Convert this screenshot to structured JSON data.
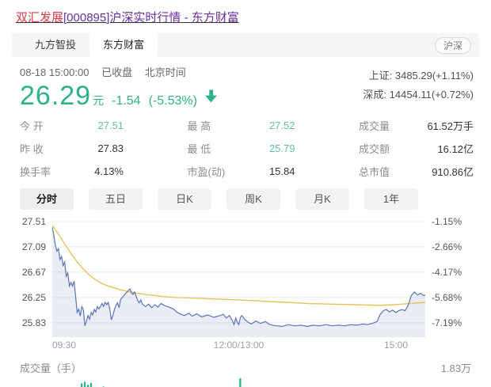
{
  "page_title": {
    "stock_name": "双汇发展",
    "rest": "[000895]沪深实时行情 - 东方财富"
  },
  "top_tabs": {
    "items": [
      {
        "label": "九方智投",
        "active": false
      },
      {
        "label": "东方财富",
        "active": true
      }
    ],
    "market_pill": "沪深"
  },
  "quote": {
    "datetime": "08-18 15:00:00",
    "status": "已收盘",
    "timezone": "北京时间",
    "price": "26.29",
    "unit": "元",
    "change": "-1.54",
    "change_pct": "(-5.53%)",
    "direction": "down",
    "indices": [
      {
        "label": "上证:",
        "value": "3485.29(+1.11%)"
      },
      {
        "label": "深成:",
        "value": "14454.11(+0.72%)"
      }
    ]
  },
  "stats": {
    "items": [
      {
        "label": "今 开",
        "value": "27.51",
        "vclass": "val green"
      },
      {
        "label": "最 高",
        "value": "27.52",
        "vclass": "val green"
      },
      {
        "label": "成交量",
        "value": "61.52万手",
        "vclass": "val dark"
      },
      {
        "label": "昨 收",
        "value": "27.83",
        "vclass": "val dark"
      },
      {
        "label": "最 低",
        "value": "25.79",
        "vclass": "val green"
      },
      {
        "label": "成交额",
        "value": "16.12亿",
        "vclass": "val dark"
      },
      {
        "label": "换手率",
        "value": "4.13%",
        "vclass": "val dark"
      },
      {
        "label": "市盈(动)",
        "value": "15.84",
        "vclass": "val dark"
      },
      {
        "label": "总市值",
        "value": "910.86亿",
        "vclass": "val dark"
      }
    ]
  },
  "chart_tabs": [
    "分时",
    "五日",
    "日K",
    "周K",
    "月K",
    "1年"
  ],
  "colors": {
    "quote_green": "#2fb28c",
    "stat_green": "#63c1a5",
    "price_line": "#5a74b8",
    "price_fill": "rgba(110,130,190,0.14)",
    "avg_line": "#e6c35c",
    "vol_green": "#2bb38a",
    "vol_red": "#d65b5b",
    "grid": "#ececec",
    "title_red": "#dd3b4b",
    "title_purple": "#6b2d9e"
  },
  "chart_data": {
    "type": "line",
    "title": "分时 (intraday)",
    "x_axis": {
      "labels": [
        "09:30",
        "12:00/13:00",
        "15:00"
      ],
      "range_minutes": [
        0,
        240
      ]
    },
    "y_axis_left": {
      "labels": [
        "27.51",
        "27.09",
        "26.67",
        "26.25",
        "25.83"
      ],
      "levels": [
        27.51,
        27.09,
        26.67,
        26.25,
        25.83
      ]
    },
    "y_axis_right": {
      "labels": [
        "-1.15%",
        "-2.66%",
        "-4.17%",
        "-5.68%",
        "-7.19%"
      ]
    },
    "prev_close": 27.83,
    "close": 26.29,
    "grid": true,
    "legend": "none",
    "series": [
      {
        "name": "price",
        "points": [
          [
            0,
            27.42
          ],
          [
            1,
            27.28
          ],
          [
            2,
            27.12
          ],
          [
            3,
            27.02
          ],
          [
            4,
            27.06
          ],
          [
            5,
            26.88
          ],
          [
            6,
            26.93
          ],
          [
            7,
            26.78
          ],
          [
            8,
            26.84
          ],
          [
            9,
            26.6
          ],
          [
            10,
            26.66
          ],
          [
            11,
            26.44
          ],
          [
            12,
            26.5
          ],
          [
            13,
            26.44
          ],
          [
            14,
            26.52
          ],
          [
            15,
            26.28
          ],
          [
            16,
            26.0
          ],
          [
            17,
            26.06
          ],
          [
            18,
            25.94
          ],
          [
            19,
            26.1
          ],
          [
            20,
            26.04
          ],
          [
            21,
            25.78
          ],
          [
            22,
            25.86
          ],
          [
            23,
            25.95
          ],
          [
            24,
            25.89
          ],
          [
            25,
            26.0
          ],
          [
            26,
            25.96
          ],
          [
            27,
            26.05
          ],
          [
            28,
            26.01
          ],
          [
            29,
            26.1
          ],
          [
            30,
            26.06
          ],
          [
            31,
            26.1
          ],
          [
            32,
            26.15
          ],
          [
            33,
            26.1
          ],
          [
            34,
            26.17
          ],
          [
            35,
            26.13
          ],
          [
            36,
            26.17
          ],
          [
            37,
            26.06
          ],
          [
            38,
            25.88
          ],
          [
            39,
            25.95
          ],
          [
            40,
            26.05
          ],
          [
            41,
            26.12
          ],
          [
            42,
            26.16
          ],
          [
            43,
            26.08
          ],
          [
            44,
            26.22
          ],
          [
            46,
            26.28
          ],
          [
            48,
            26.34
          ],
          [
            50,
            26.39
          ],
          [
            51,
            26.33
          ],
          [
            52,
            26.3
          ],
          [
            53,
            26.34
          ],
          [
            54,
            26.27
          ],
          [
            55,
            26.2
          ],
          [
            56,
            26.16
          ],
          [
            57,
            26.21
          ],
          [
            58,
            26.14
          ],
          [
            60,
            26.1
          ],
          [
            62,
            26.14
          ],
          [
            64,
            26.08
          ],
          [
            66,
            26.13
          ],
          [
            68,
            26.09
          ],
          [
            70,
            26.15
          ],
          [
            72,
            26.12
          ],
          [
            75,
            26.09
          ],
          [
            78,
            26.06
          ],
          [
            80,
            26.01
          ],
          [
            82,
            25.98
          ],
          [
            85,
            25.95
          ],
          [
            88,
            25.99
          ],
          [
            90,
            25.94
          ],
          [
            93,
            25.98
          ],
          [
            96,
            25.93
          ],
          [
            100,
            25.96
          ],
          [
            104,
            25.92
          ],
          [
            108,
            25.95
          ],
          [
            110,
            25.97
          ],
          [
            112,
            25.91
          ],
          [
            114,
            25.95
          ],
          [
            116,
            25.86
          ],
          [
            117,
            25.8
          ],
          [
            118,
            25.91
          ],
          [
            119,
            25.84
          ],
          [
            120,
            25.8
          ],
          [
            121,
            25.92
          ],
          [
            122,
            25.95
          ],
          [
            124,
            25.88
          ],
          [
            126,
            25.84
          ],
          [
            128,
            25.81
          ],
          [
            131,
            25.86
          ],
          [
            134,
            25.82
          ],
          [
            137,
            25.85
          ],
          [
            140,
            25.8
          ],
          [
            144,
            25.78
          ],
          [
            148,
            25.77
          ],
          [
            152,
            25.8
          ],
          [
            156,
            25.78
          ],
          [
            160,
            25.79
          ],
          [
            164,
            25.77
          ],
          [
            168,
            25.79
          ],
          [
            172,
            25.78
          ],
          [
            176,
            25.8
          ],
          [
            180,
            25.78
          ],
          [
            184,
            25.79
          ],
          [
            188,
            25.78
          ],
          [
            192,
            25.8
          ],
          [
            196,
            25.79
          ],
          [
            200,
            25.81
          ],
          [
            203,
            25.8
          ],
          [
            206,
            25.82
          ],
          [
            209,
            25.85
          ],
          [
            211,
            25.97
          ],
          [
            213,
            26.03
          ],
          [
            215,
            26.05
          ],
          [
            217,
            26.01
          ],
          [
            219,
            26.04
          ],
          [
            221,
            26.0
          ],
          [
            223,
            26.03
          ],
          [
            225,
            26.05
          ],
          [
            227,
            26.03
          ],
          [
            229,
            26.12
          ],
          [
            231,
            26.28
          ],
          [
            233,
            26.34
          ],
          [
            235,
            26.29
          ],
          [
            237,
            26.32
          ],
          [
            239,
            26.28
          ],
          [
            240,
            26.29
          ]
        ]
      },
      {
        "name": "avg",
        "points": [
          [
            0,
            27.45
          ],
          [
            4,
            27.3
          ],
          [
            8,
            27.14
          ],
          [
            12,
            26.98
          ],
          [
            16,
            26.84
          ],
          [
            20,
            26.72
          ],
          [
            24,
            26.62
          ],
          [
            28,
            26.54
          ],
          [
            32,
            26.48
          ],
          [
            36,
            26.44
          ],
          [
            40,
            26.41
          ],
          [
            45,
            26.37
          ],
          [
            50,
            26.34
          ],
          [
            55,
            26.32
          ],
          [
            60,
            26.3
          ],
          [
            70,
            26.27
          ],
          [
            80,
            26.25
          ],
          [
            90,
            26.24
          ],
          [
            100,
            26.23
          ],
          [
            110,
            26.22
          ],
          [
            120,
            26.21
          ],
          [
            135,
            26.19
          ],
          [
            150,
            26.17
          ],
          [
            165,
            26.15
          ],
          [
            180,
            26.14
          ],
          [
            195,
            26.13
          ],
          [
            210,
            26.12
          ],
          [
            220,
            26.13
          ],
          [
            230,
            26.15
          ],
          [
            240,
            26.17
          ]
        ]
      }
    ],
    "volume": {
      "label": "成交量（手）",
      "max_label": "1.83万",
      "bars": [
        [
          0.38,
          "g"
        ],
        [
          0.48,
          "g"
        ],
        [
          0.42,
          "g"
        ],
        [
          0.32,
          "r"
        ],
        [
          0.52,
          "g"
        ],
        [
          0.58,
          "r"
        ],
        [
          0.45,
          "r"
        ],
        [
          0.62,
          "g"
        ],
        [
          0.55,
          "g"
        ],
        [
          0.78,
          "g"
        ],
        [
          0.85,
          "g"
        ],
        [
          0.72,
          "g"
        ],
        [
          0.8,
          "g"
        ],
        [
          0.62,
          "r"
        ],
        [
          0.56,
          "r"
        ],
        [
          0.5,
          "r"
        ],
        [
          0.64,
          "g"
        ],
        [
          0.46,
          "r"
        ],
        [
          0.42,
          "r"
        ],
        [
          0.47,
          "g"
        ],
        [
          0.36,
          "g"
        ],
        [
          0.42,
          "r"
        ],
        [
          0.3,
          "g"
        ],
        [
          0.28,
          "g"
        ],
        [
          0.26,
          "g"
        ],
        [
          0.32,
          "r"
        ],
        [
          0.22,
          "g"
        ],
        [
          0.2,
          "g"
        ],
        [
          0.18,
          "r"
        ],
        [
          0.36,
          "g"
        ],
        [
          0.16,
          "g"
        ],
        [
          0.14,
          "r"
        ],
        [
          0.12,
          "g"
        ],
        [
          0.18,
          "g"
        ],
        [
          0.1,
          "r"
        ],
        [
          0.12,
          "g"
        ],
        [
          0.09,
          "g"
        ],
        [
          0.11,
          "r"
        ],
        [
          0.08,
          "g"
        ],
        [
          0.1,
          "g"
        ],
        [
          0.14,
          "g"
        ],
        [
          0.08,
          "r"
        ],
        [
          0.07,
          "g"
        ],
        [
          0.09,
          "r"
        ],
        [
          0.06,
          "g"
        ],
        [
          0.08,
          "g"
        ],
        [
          0.12,
          "r"
        ],
        [
          0.07,
          "g"
        ],
        [
          0.06,
          "g"
        ],
        [
          0.09,
          "g"
        ],
        [
          0.07,
          "r"
        ],
        [
          0.1,
          "g"
        ],
        [
          0.08,
          "g"
        ],
        [
          0.06,
          "r"
        ],
        [
          0.09,
          "g"
        ],
        [
          0.07,
          "g"
        ],
        [
          0.11,
          "g"
        ],
        [
          0.08,
          "r"
        ],
        [
          0.06,
          "g"
        ],
        [
          0.1,
          "g"
        ],
        [
          1.0,
          "g"
        ],
        [
          0.55,
          "g"
        ],
        [
          0.3,
          "g"
        ],
        [
          0.22,
          "r"
        ],
        [
          0.18,
          "g"
        ],
        [
          0.25,
          "g"
        ],
        [
          0.15,
          "r"
        ],
        [
          0.12,
          "g"
        ],
        [
          0.1,
          "r"
        ],
        [
          0.14,
          "g"
        ],
        [
          0.09,
          "g"
        ],
        [
          0.12,
          "r"
        ],
        [
          0.08,
          "g"
        ],
        [
          0.1,
          "g"
        ],
        [
          0.13,
          "r"
        ],
        [
          0.09,
          "g"
        ],
        [
          0.07,
          "g"
        ],
        [
          0.11,
          "g"
        ],
        [
          0.08,
          "r"
        ],
        [
          0.1,
          "g"
        ],
        [
          0.12,
          "g"
        ],
        [
          0.09,
          "r"
        ],
        [
          0.14,
          "r"
        ],
        [
          0.1,
          "g"
        ],
        [
          0.08,
          "g"
        ],
        [
          0.12,
          "g"
        ],
        [
          0.15,
          "r"
        ],
        [
          0.09,
          "g"
        ],
        [
          0.11,
          "g"
        ],
        [
          0.07,
          "g"
        ],
        [
          0.13,
          "g"
        ],
        [
          0.1,
          "r"
        ],
        [
          0.08,
          "g"
        ],
        [
          0.12,
          "r"
        ],
        [
          0.16,
          "r"
        ],
        [
          0.1,
          "g"
        ],
        [
          0.09,
          "g"
        ],
        [
          0.14,
          "g"
        ],
        [
          0.11,
          "r"
        ],
        [
          0.08,
          "g"
        ],
        [
          0.18,
          "g"
        ],
        [
          0.12,
          "g"
        ],
        [
          0.09,
          "r"
        ],
        [
          0.11,
          "g"
        ],
        [
          0.15,
          "g"
        ],
        [
          0.1,
          "r"
        ],
        [
          0.12,
          "g"
        ],
        [
          0.18,
          "r"
        ],
        [
          0.14,
          "g"
        ],
        [
          0.1,
          "g"
        ],
        [
          0.2,
          "g"
        ],
        [
          0.16,
          "r"
        ],
        [
          0.22,
          "g"
        ],
        [
          0.25,
          "r"
        ],
        [
          0.18,
          "g"
        ],
        [
          0.14,
          "g"
        ],
        [
          0.3,
          "g"
        ],
        [
          0.2,
          "g"
        ],
        [
          0.48,
          "g"
        ],
        [
          0.1,
          "g"
        ]
      ]
    }
  }
}
